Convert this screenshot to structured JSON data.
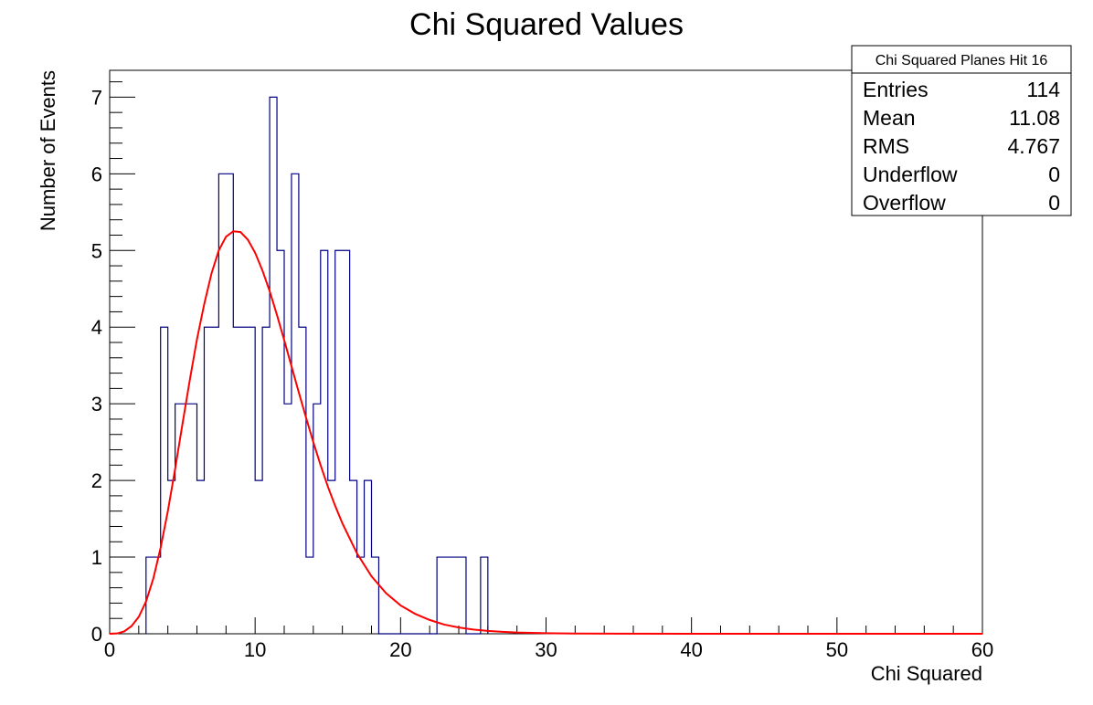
{
  "chart_data": {
    "type": "bar",
    "title": "Chi Squared Values",
    "xlabel": "Chi Squared",
    "ylabel": "Number of Events",
    "xlim": [
      0,
      60
    ],
    "ylim": [
      0,
      7.35
    ],
    "x_ticks": [
      0,
      10,
      20,
      30,
      40,
      50,
      60
    ],
    "y_ticks": [
      0,
      1,
      2,
      3,
      4,
      5,
      6,
      7
    ],
    "grid": false,
    "histogram": {
      "bin_width": 0.5,
      "color": "#000080",
      "bins": [
        {
          "x": 2.5,
          "count": 1
        },
        {
          "x": 3.0,
          "count": 1
        },
        {
          "x": 3.5,
          "count": 4
        },
        {
          "x": 4.0,
          "count": 2
        },
        {
          "x": 4.5,
          "count": 3
        },
        {
          "x": 5.0,
          "count": 3
        },
        {
          "x": 5.5,
          "count": 3
        },
        {
          "x": 6.0,
          "count": 2
        },
        {
          "x": 6.5,
          "count": 4
        },
        {
          "x": 7.0,
          "count": 4
        },
        {
          "x": 7.5,
          "count": 6
        },
        {
          "x": 8.0,
          "count": 6
        },
        {
          "x": 8.5,
          "count": 4
        },
        {
          "x": 9.0,
          "count": 4
        },
        {
          "x": 9.5,
          "count": 4
        },
        {
          "x": 10.0,
          "count": 2
        },
        {
          "x": 10.5,
          "count": 4
        },
        {
          "x": 11.0,
          "count": 7
        },
        {
          "x": 11.5,
          "count": 5
        },
        {
          "x": 12.0,
          "count": 3
        },
        {
          "x": 12.5,
          "count": 6
        },
        {
          "x": 13.0,
          "count": 4
        },
        {
          "x": 13.5,
          "count": 1
        },
        {
          "x": 14.0,
          "count": 3
        },
        {
          "x": 14.5,
          "count": 5
        },
        {
          "x": 15.0,
          "count": 2
        },
        {
          "x": 15.5,
          "count": 5
        },
        {
          "x": 16.0,
          "count": 5
        },
        {
          "x": 16.5,
          "count": 2
        },
        {
          "x": 17.0,
          "count": 1
        },
        {
          "x": 17.5,
          "count": 2
        },
        {
          "x": 18.0,
          "count": 1
        },
        {
          "x": 22.5,
          "count": 1
        },
        {
          "x": 23.0,
          "count": 1
        },
        {
          "x": 23.5,
          "count": 1
        },
        {
          "x": 24.0,
          "count": 1
        },
        {
          "x": 25.5,
          "count": 1
        }
      ]
    },
    "fit_curve": {
      "color": "#ff0000",
      "points": [
        [
          0,
          0
        ],
        [
          0.5,
          0.004
        ],
        [
          1,
          0.03
        ],
        [
          1.5,
          0.1
        ],
        [
          2,
          0.22
        ],
        [
          2.5,
          0.42
        ],
        [
          3,
          0.72
        ],
        [
          3.5,
          1.12
        ],
        [
          4,
          1.6
        ],
        [
          4.5,
          2.15
        ],
        [
          5,
          2.73
        ],
        [
          5.5,
          3.3
        ],
        [
          6,
          3.84
        ],
        [
          6.5,
          4.3
        ],
        [
          7,
          4.7
        ],
        [
          7.5,
          5.0
        ],
        [
          8,
          5.18
        ],
        [
          8.5,
          5.25
        ],
        [
          9,
          5.24
        ],
        [
          9.5,
          5.14
        ],
        [
          10,
          4.97
        ],
        [
          10.5,
          4.74
        ],
        [
          11,
          4.47
        ],
        [
          11.5,
          4.16
        ],
        [
          12,
          3.83
        ],
        [
          12.5,
          3.49
        ],
        [
          13,
          3.15
        ],
        [
          13.5,
          2.82
        ],
        [
          14,
          2.5
        ],
        [
          14.5,
          2.2
        ],
        [
          15,
          1.92
        ],
        [
          15.5,
          1.67
        ],
        [
          16,
          1.44
        ],
        [
          17,
          1.05
        ],
        [
          18,
          0.75
        ],
        [
          19,
          0.53
        ],
        [
          20,
          0.37
        ],
        [
          21,
          0.26
        ],
        [
          22,
          0.18
        ],
        [
          23,
          0.12
        ],
        [
          24,
          0.082
        ],
        [
          25,
          0.055
        ],
        [
          26,
          0.037
        ],
        [
          27,
          0.025
        ],
        [
          28,
          0.016
        ],
        [
          30,
          0.007
        ],
        [
          32,
          0.003
        ],
        [
          35,
          0.001
        ],
        [
          40,
          0.0001
        ],
        [
          50,
          0
        ],
        [
          60,
          0
        ]
      ]
    },
    "stats_box": {
      "position": "top-right",
      "title": "Chi Squared Planes Hit 16",
      "rows": [
        {
          "label": "Entries",
          "value": "114"
        },
        {
          "label": "Mean",
          "value": "11.08"
        },
        {
          "label": "RMS",
          "value": "4.767"
        },
        {
          "label": "Underflow",
          "value": "0"
        },
        {
          "label": "Overflow",
          "value": "0"
        }
      ]
    }
  }
}
